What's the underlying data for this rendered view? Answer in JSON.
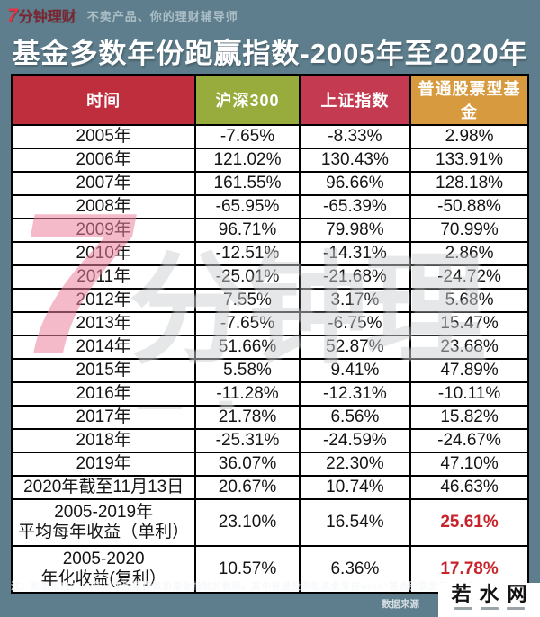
{
  "logo": {
    "seven": "7",
    "brand": "分钟理财",
    "tagline": "不卖产品、你的理财辅导师"
  },
  "title": "基金多数年份跑赢指数-2005年至2020年",
  "table": {
    "columns": [
      {
        "label": "时间",
        "color": "#BE2E3D"
      },
      {
        "label": "沪深300",
        "color": "#98AC3D"
      },
      {
        "label": "上证指数",
        "color": "#C43A50"
      },
      {
        "label": "普通股票型基金",
        "color": "#D79A3F"
      }
    ],
    "rows": [
      {
        "time": "2005年",
        "values": [
          "-7.65%",
          "-8.33%",
          "2.98%"
        ]
      },
      {
        "time": "2006年",
        "values": [
          "121.02%",
          "130.43%",
          "133.91%"
        ]
      },
      {
        "time": "2007年",
        "values": [
          "161.55%",
          "96.66%",
          "128.18%"
        ]
      },
      {
        "time": "2008年",
        "values": [
          "-65.95%",
          "-65.39%",
          "-50.88%"
        ]
      },
      {
        "time": "2009年",
        "values": [
          "96.71%",
          "79.98%",
          "70.99%"
        ]
      },
      {
        "time": "2010年",
        "values": [
          "-12.51%",
          "-14.31%",
          "2.86%"
        ]
      },
      {
        "time": "2011年",
        "values": [
          "-25.01%",
          "-21.68%",
          "-24.72%"
        ]
      },
      {
        "time": "2012年",
        "values": [
          "7.55%",
          "3.17%",
          "5.68%"
        ]
      },
      {
        "time": "2013年",
        "values": [
          "-7.65%",
          "-6.75%",
          "15.47%"
        ]
      },
      {
        "time": "2014年",
        "values": [
          "51.66%",
          "52.87%",
          "23.68%"
        ]
      },
      {
        "time": "2015年",
        "values": [
          "5.58%",
          "9.41%",
          "47.89%"
        ]
      },
      {
        "time": "2016年",
        "values": [
          "-11.28%",
          "-12.31%",
          "-10.11%"
        ]
      },
      {
        "time": "2017年",
        "values": [
          "21.78%",
          "6.56%",
          "15.82%"
        ]
      },
      {
        "time": "2018年",
        "values": [
          "-25.31%",
          "-24.59%",
          "-24.67%"
        ]
      },
      {
        "time": "2019年",
        "values": [
          "36.07%",
          "22.30%",
          "47.10%"
        ]
      },
      {
        "time": "2020年截至11月13日",
        "values": [
          "20.67%",
          "10.74%",
          "46.63%"
        ]
      },
      {
        "time": "2005-2019年\n平均每年收益（单利）",
        "values": [
          "23.10%",
          "16.54%",
          "25.61%"
        ],
        "tall": true,
        "highlight_last": true
      },
      {
        "time": "2005-2020\n年化收益(复利）",
        "values": [
          "10.57%",
          "6.36%",
          "17.78%"
        ],
        "tall": true,
        "highlight_last": true
      }
    ]
  },
  "watermark": {
    "seven": "7",
    "rest": "分钟理财"
  },
  "footer": {
    "note": "注：数据采自2005年以来股票指数和基金指数的表现。其中普通股票型基金采自wind“普通股票型基金指数”",
    "source_label": "数据来源"
  },
  "corner_watermark": {
    "text": "若水网"
  },
  "colors": {
    "background": "#5E7E8D",
    "highlight_red": "#C8232B",
    "header_time": "#BE2E3D",
    "header_hs300": "#98AC3D",
    "header_szzs": "#C43A50",
    "header_fund": "#D79A3F"
  }
}
